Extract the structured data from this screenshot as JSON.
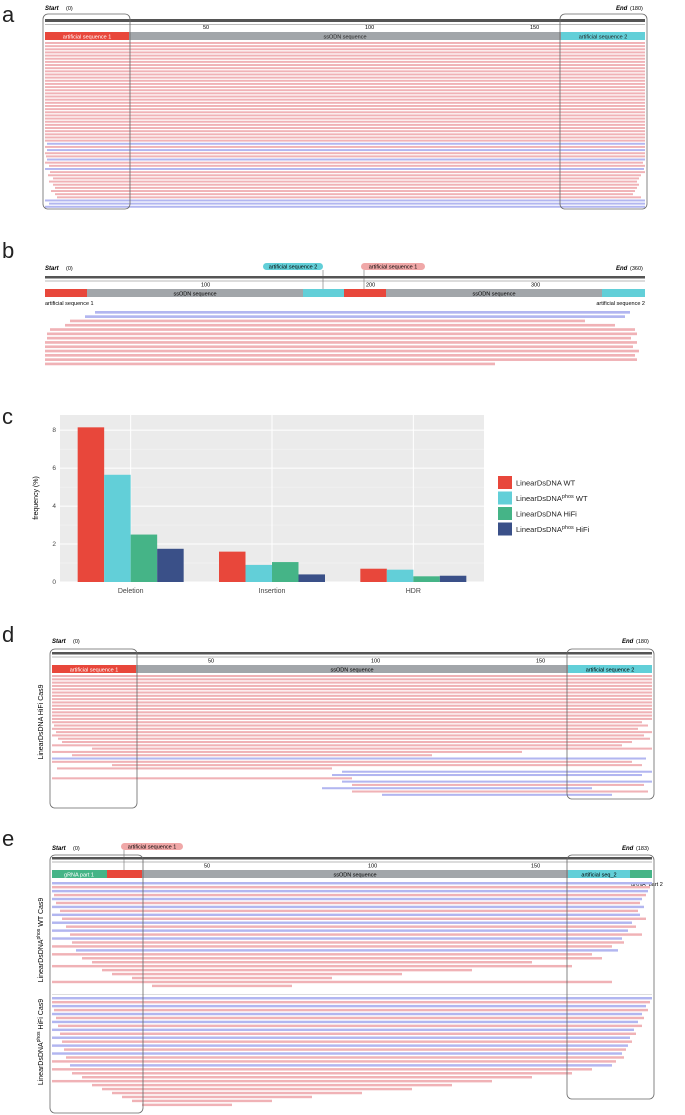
{
  "panels": {
    "a": {
      "letter": "a",
      "start_label": "Start",
      "start_val": "(0)",
      "end_label": "End",
      "end_val": "(180)",
      "ticks": [
        "50",
        "100",
        "150"
      ],
      "segments": [
        "artificial sequence 1",
        "ssODN sequence",
        "artificial sequence 2"
      ]
    },
    "b": {
      "letter": "b",
      "start_label": "Start",
      "start_val": "(0)",
      "end_label": "End",
      "end_val": "(360)",
      "ticks": [
        "100",
        "200",
        "300"
      ],
      "callouts": [
        "artificial sequence 2",
        "artificial sequence 1"
      ],
      "segments": [
        "ssODN sequence",
        "ssODN sequence"
      ],
      "below_labels": [
        "artificial sequence 1",
        "artificial sequence 2"
      ]
    },
    "c": {
      "letter": "c"
    },
    "d": {
      "letter": "d",
      "start_label": "Start",
      "start_val": "(0)",
      "end_label": "End",
      "end_val": "(180)",
      "ticks": [
        "50",
        "100",
        "150"
      ],
      "segments": [
        "artificial sequence 1",
        "ssODN sequence",
        "artificial sequence 2"
      ],
      "track_label": "LinearDsDNA HiFi Cas9"
    },
    "e": {
      "letter": "e",
      "start_label": "Start",
      "start_val": "(0)",
      "end_label": "End",
      "end_val": "(183)",
      "ticks": [
        "50",
        "100",
        "150"
      ],
      "callout": "artificial sequence 1",
      "segments": [
        "gRNA part 1",
        "ssODN sequence",
        "artificial seq_2"
      ],
      "below_label": "gRNA_part 2",
      "track1": {
        "pre": "LinearDsDNA",
        "sup": "phos",
        "post": " WT Cas9"
      },
      "track2": {
        "pre": "LinearDsDNA",
        "sup": "phos",
        "post": " HiFi Cas9"
      }
    }
  },
  "colors": {
    "red": "#e8473b",
    "cyan": "#62cfd8",
    "green": "#45b487",
    "navy": "#3a5088",
    "grey": "#a2a6aa",
    "read_red": "#f0b2b6",
    "read_blue": "#b2b6f0"
  },
  "chart_data": {
    "type": "bar",
    "title": "",
    "xlabel": "",
    "ylabel": "frequency (%)",
    "ylim": [
      0,
      8.8
    ],
    "yticks": [
      "0",
      "2",
      "4",
      "6",
      "8"
    ],
    "categories": [
      "Deletion",
      "Insertion",
      "HDR"
    ],
    "series": [
      {
        "name": "LinearDsDNA WT",
        "legend_pre": "LinearDsDNA",
        "legend_sup": "",
        "legend_post": " WT",
        "color": "#e8473b",
        "values": [
          8.15,
          1.6,
          0.7
        ]
      },
      {
        "name": "LinearDsDNAphos WT",
        "legend_pre": "LinearDsDNA",
        "legend_sup": "phos",
        "legend_post": " WT",
        "color": "#62cfd8",
        "values": [
          5.65,
          0.9,
          0.65
        ]
      },
      {
        "name": "LinearDsDNA HiFi",
        "legend_pre": "LinearDsDNA",
        "legend_sup": "",
        "legend_post": " HiFi",
        "color": "#45b487",
        "values": [
          2.5,
          1.05,
          0.3
        ]
      },
      {
        "name": "LinearDsDNAphos HiFi",
        "legend_pre": "LinearDsDNA",
        "legend_sup": "phos",
        "legend_post": " HiFi",
        "color": "#3a5088",
        "values": [
          1.75,
          0.4,
          0.33
        ]
      }
    ],
    "legend_position": "right"
  }
}
